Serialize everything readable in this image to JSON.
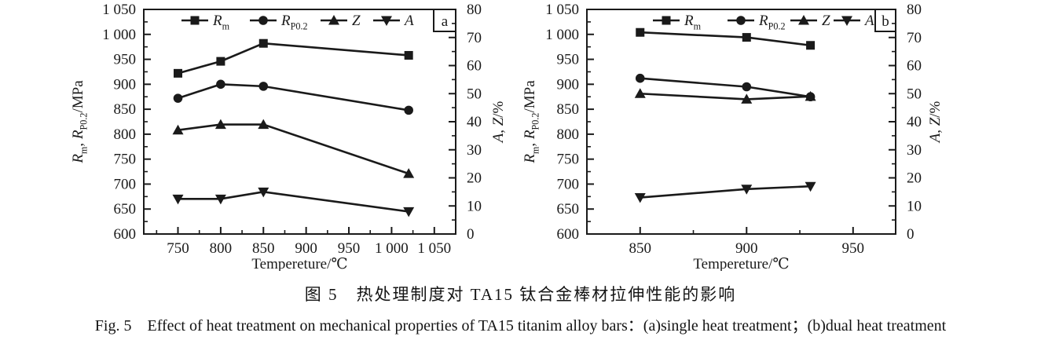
{
  "figure": {
    "caption_zh": "图 5　热处理制度对 TA15 钛合金棒材拉伸性能的影响",
    "caption_en": "Fig. 5　Effect of heat treatment on mechanical properties of TA15 titanim alloy bars：(a)single heat treatment；(b)dual heat treatment"
  },
  "colors": {
    "ink": "#1a1a1a",
    "background": "#ffffff"
  },
  "chart_data": [
    {
      "type": "line",
      "panel_label": "a",
      "xlabel": "Tempereture/℃",
      "ylabel_left": "Rm, RP0.2/MPa",
      "ylabel_left_parts": [
        [
          "R",
          "i"
        ],
        [
          "m",
          "s"
        ],
        [
          ", ",
          ""
        ],
        [
          "R",
          "i"
        ],
        [
          "P0.2",
          "s"
        ],
        [
          "/MPa",
          ""
        ]
      ],
      "ylabel_right": "A, Z/%",
      "ylabel_right_parts": [
        [
          "A",
          "i"
        ],
        [
          ", ",
          ""
        ],
        [
          "Z",
          "i"
        ],
        [
          "/%",
          ""
        ]
      ],
      "xlim": [
        710,
        1075
      ],
      "x_major_ticks": [
        750,
        800,
        850,
        900,
        950,
        1000,
        1050
      ],
      "x_tick_labels": [
        "750",
        "800",
        "850",
        "900",
        "950",
        "1 000",
        "1 050"
      ],
      "x_minor_ticks": [
        725,
        775,
        825,
        875,
        925,
        975,
        1025
      ],
      "ylim_left": [
        600,
        1050
      ],
      "y_left_ticks": [
        600,
        650,
        700,
        750,
        800,
        850,
        900,
        950,
        1000,
        1050
      ],
      "y_left_tick_labels": [
        "600",
        "650",
        "700",
        "750",
        "800",
        "850",
        "900",
        "950",
        "1 000",
        "1 050"
      ],
      "y_left_minor_step": 25,
      "ylim_right": [
        0,
        80
      ],
      "y_right_ticks": [
        0,
        10,
        20,
        30,
        40,
        50,
        60,
        70,
        80
      ],
      "y_right_tick_labels": [
        "0",
        "10",
        "20",
        "30",
        "40",
        "50",
        "60",
        "70",
        "80"
      ],
      "y_right_minor_step": 5,
      "x": [
        750,
        800,
        850,
        1020
      ],
      "series": [
        {
          "name": "Rm",
          "label_parts": [
            [
              "R",
              "i"
            ],
            [
              "m",
              "s"
            ]
          ],
          "marker": "square",
          "axis": "left",
          "values": [
            922,
            946,
            982,
            958
          ]
        },
        {
          "name": "RP0.2",
          "label_parts": [
            [
              "R",
              "i"
            ],
            [
              "P0.2",
              "s"
            ]
          ],
          "marker": "circle",
          "axis": "left",
          "values": [
            872,
            900,
            896,
            848
          ]
        },
        {
          "name": "Z",
          "label_parts": [
            [
              "Z",
              "i"
            ]
          ],
          "marker": "triangle-up",
          "axis": "right",
          "values": [
            37,
            39,
            39,
            21.5
          ]
        },
        {
          "name": "A",
          "label_parts": [
            [
              "A",
              "i"
            ]
          ],
          "marker": "triangle-down",
          "axis": "right",
          "values": [
            12.5,
            12.5,
            15,
            8
          ]
        }
      ],
      "legend_position": "top-inside"
    },
    {
      "type": "line",
      "panel_label": "b",
      "xlabel": "Tempereture/℃",
      "ylabel_left": "Rm, RP0.2/MPa",
      "ylabel_left_parts": [
        [
          "R",
          "i"
        ],
        [
          "m",
          "s"
        ],
        [
          ", ",
          ""
        ],
        [
          "R",
          "i"
        ],
        [
          "P0.2",
          "s"
        ],
        [
          "/MPa",
          ""
        ]
      ],
      "ylabel_right": "A, Z/%",
      "ylabel_right_parts": [
        [
          "A",
          "i"
        ],
        [
          ", ",
          ""
        ],
        [
          "Z",
          "i"
        ],
        [
          "/%",
          ""
        ]
      ],
      "xlim": [
        825,
        970
      ],
      "x_major_ticks": [
        850,
        900,
        950
      ],
      "x_tick_labels": [
        "850",
        "900",
        "950"
      ],
      "x_minor_ticks": [
        875,
        925
      ],
      "ylim_left": [
        600,
        1050
      ],
      "y_left_ticks": [
        600,
        650,
        700,
        750,
        800,
        850,
        900,
        950,
        1000,
        1050
      ],
      "y_left_tick_labels": [
        "600",
        "650",
        "700",
        "750",
        "800",
        "850",
        "900",
        "950",
        "1 000",
        "1 050"
      ],
      "y_left_minor_step": 25,
      "ylim_right": [
        0,
        80
      ],
      "y_right_ticks": [
        0,
        10,
        20,
        30,
        40,
        50,
        60,
        70,
        80
      ],
      "y_right_tick_labels": [
        "0",
        "10",
        "20",
        "30",
        "40",
        "50",
        "60",
        "70",
        "80"
      ],
      "y_right_minor_step": 5,
      "x": [
        850,
        900,
        930
      ],
      "series": [
        {
          "name": "Rm",
          "label_parts": [
            [
              "R",
              "i"
            ],
            [
              "m",
              "s"
            ]
          ],
          "marker": "square",
          "axis": "left",
          "values": [
            1004,
            994,
            978
          ]
        },
        {
          "name": "RP0.2",
          "label_parts": [
            [
              "R",
              "i"
            ],
            [
              "P0.2",
              "s"
            ]
          ],
          "marker": "circle",
          "axis": "left",
          "values": [
            912,
            895,
            875
          ]
        },
        {
          "name": "Z",
          "label_parts": [
            [
              "Z",
              "i"
            ]
          ],
          "marker": "triangle-up",
          "axis": "right",
          "values": [
            50,
            48,
            49
          ]
        },
        {
          "name": "A",
          "label_parts": [
            [
              "A",
              "i"
            ]
          ],
          "marker": "triangle-down",
          "axis": "right",
          "values": [
            13,
            16,
            17
          ]
        }
      ],
      "legend_position": "top-inside"
    }
  ]
}
